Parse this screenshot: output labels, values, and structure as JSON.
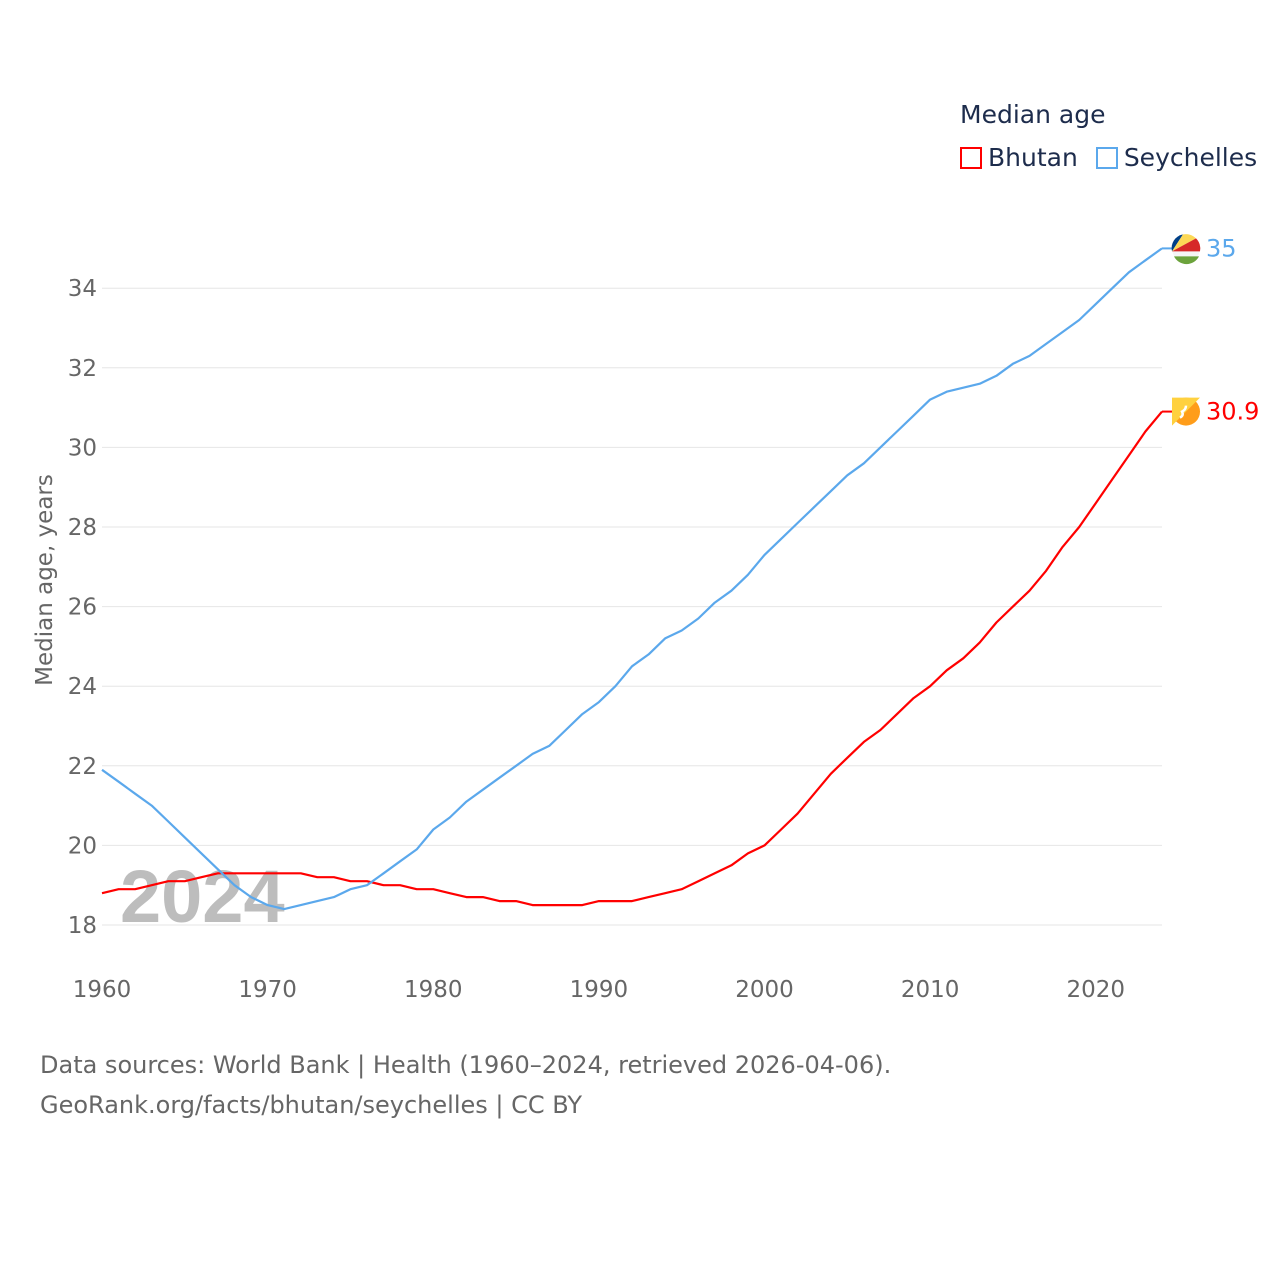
{
  "chart_data": {
    "type": "line",
    "legend_title": "Median age",
    "ylabel": "Median age, years",
    "xlabel": "",
    "ylim": [
      17,
      35.5
    ],
    "xlim": [
      1960,
      2024
    ],
    "y_ticks": [
      "18",
      "20",
      "22",
      "24",
      "26",
      "28",
      "30",
      "32",
      "34"
    ],
    "x_ticks": [
      "1960",
      "1970",
      "1980",
      "1990",
      "2000",
      "2010",
      "2020"
    ],
    "grid": true,
    "legend_position": "top-right",
    "year_watermark": "2024",
    "x": [
      1960,
      1961,
      1962,
      1963,
      1964,
      1965,
      1966,
      1967,
      1968,
      1969,
      1970,
      1971,
      1972,
      1973,
      1974,
      1975,
      1976,
      1977,
      1978,
      1979,
      1980,
      1981,
      1982,
      1983,
      1984,
      1985,
      1986,
      1987,
      1988,
      1989,
      1990,
      1991,
      1992,
      1993,
      1994,
      1995,
      1996,
      1997,
      1998,
      1999,
      2000,
      2001,
      2002,
      2003,
      2004,
      2005,
      2006,
      2007,
      2008,
      2009,
      2010,
      2011,
      2012,
      2013,
      2014,
      2015,
      2016,
      2017,
      2018,
      2019,
      2020,
      2021,
      2022,
      2023,
      2024
    ],
    "series": [
      {
        "name": "Bhutan",
        "color": "#ff0000",
        "end_label": "30.9",
        "values": [
          18.8,
          18.9,
          18.9,
          19.0,
          19.1,
          19.1,
          19.2,
          19.3,
          19.3,
          19.3,
          19.3,
          19.3,
          19.3,
          19.2,
          19.2,
          19.1,
          19.1,
          19.0,
          19.0,
          18.9,
          18.9,
          18.8,
          18.7,
          18.7,
          18.6,
          18.6,
          18.5,
          18.5,
          18.5,
          18.5,
          18.6,
          18.6,
          18.6,
          18.7,
          18.8,
          18.9,
          19.1,
          19.3,
          19.5,
          19.8,
          20.0,
          20.4,
          20.8,
          21.3,
          21.8,
          22.2,
          22.6,
          22.9,
          23.3,
          23.7,
          24.0,
          24.4,
          24.7,
          25.1,
          25.6,
          26.0,
          26.4,
          26.9,
          27.5,
          28.0,
          28.6,
          29.2,
          29.8,
          30.4,
          30.9
        ]
      },
      {
        "name": "Seychelles",
        "color": "#5ba8ec",
        "end_label": "35",
        "values": [
          21.9,
          21.6,
          21.3,
          21.0,
          20.6,
          20.2,
          19.8,
          19.4,
          19.0,
          18.7,
          18.5,
          18.4,
          18.5,
          18.6,
          18.7,
          18.9,
          19.0,
          19.3,
          19.6,
          19.9,
          20.4,
          20.7,
          21.1,
          21.4,
          21.7,
          22.0,
          22.3,
          22.5,
          22.9,
          23.3,
          23.6,
          24.0,
          24.5,
          24.8,
          25.2,
          25.4,
          25.7,
          26.1,
          26.4,
          26.8,
          27.3,
          27.7,
          28.1,
          28.5,
          28.9,
          29.3,
          29.6,
          30.0,
          30.4,
          30.8,
          31.2,
          31.4,
          31.5,
          31.6,
          31.8,
          32.1,
          32.3,
          32.6,
          32.9,
          33.2,
          33.6,
          34.0,
          34.4,
          34.7,
          35.0
        ]
      }
    ]
  },
  "footer": {
    "line1": "Data sources: World Bank | Health (1960–2024, retrieved 2026-04-06).",
    "line2": "GeoRank.org/facts/bhutan/seychelles | CC BY"
  }
}
